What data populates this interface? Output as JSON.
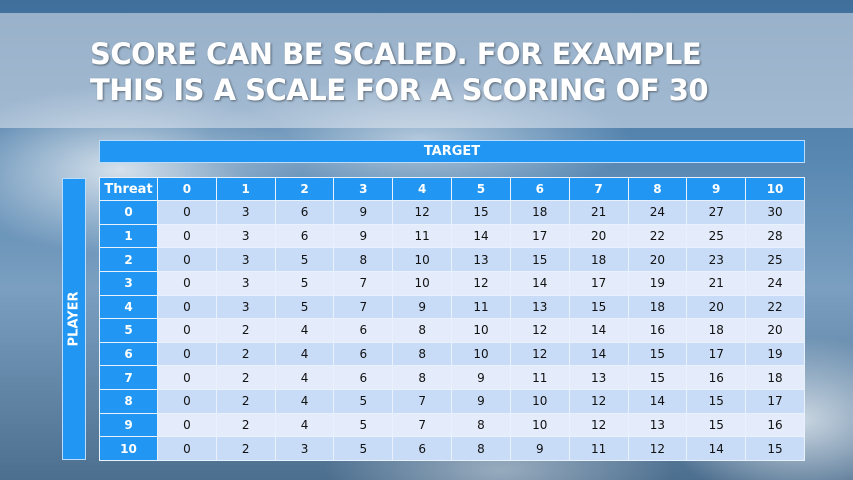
{
  "slide": {
    "title_line1": "SCORE CAN BE SCALED. FOR EXAMPLE",
    "title_line2": "THIS IS A SCALE FOR A SCORING OF 30"
  },
  "table": {
    "column_group_label": "TARGET",
    "row_group_label": "PLAYER",
    "corner_label": "Threat",
    "columns": [
      "0",
      "1",
      "2",
      "3",
      "4",
      "5",
      "6",
      "7",
      "8",
      "9",
      "10"
    ],
    "rows": [
      {
        "label": "0",
        "values": [
          0,
          3,
          6,
          9,
          12,
          15,
          18,
          21,
          24,
          27,
          30
        ]
      },
      {
        "label": "1",
        "values": [
          0,
          3,
          6,
          9,
          11,
          14,
          17,
          20,
          22,
          25,
          28
        ]
      },
      {
        "label": "2",
        "values": [
          0,
          3,
          5,
          8,
          10,
          13,
          15,
          18,
          20,
          23,
          25
        ]
      },
      {
        "label": "3",
        "values": [
          0,
          3,
          5,
          7,
          10,
          12,
          14,
          17,
          19,
          21,
          24
        ]
      },
      {
        "label": "4",
        "values": [
          0,
          3,
          5,
          7,
          9,
          11,
          13,
          15,
          18,
          20,
          22
        ]
      },
      {
        "label": "5",
        "values": [
          0,
          2,
          4,
          6,
          8,
          10,
          12,
          14,
          16,
          18,
          20
        ]
      },
      {
        "label": "6",
        "values": [
          0,
          2,
          4,
          6,
          8,
          10,
          12,
          14,
          15,
          17,
          19
        ]
      },
      {
        "label": "7",
        "values": [
          0,
          2,
          4,
          6,
          8,
          9,
          11,
          13,
          15,
          16,
          18
        ]
      },
      {
        "label": "8",
        "values": [
          0,
          2,
          4,
          5,
          7,
          9,
          10,
          12,
          14,
          15,
          17
        ]
      },
      {
        "label": "9",
        "values": [
          0,
          2,
          4,
          5,
          7,
          8,
          10,
          12,
          13,
          15,
          16
        ]
      },
      {
        "label": "10",
        "values": [
          0,
          2,
          3,
          5,
          6,
          8,
          9,
          11,
          12,
          14,
          15
        ]
      }
    ]
  },
  "colors": {
    "header_blue": "#2196f3",
    "row_dark": "#c9dcf7",
    "row_light": "#e4ecfb"
  }
}
